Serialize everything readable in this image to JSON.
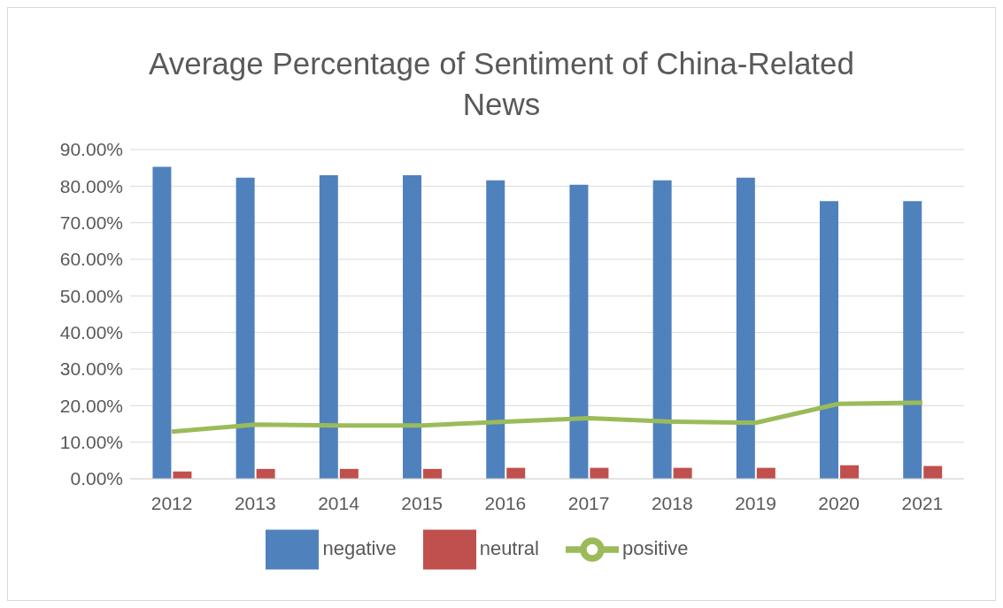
{
  "chart_data": {
    "type": "bar",
    "title": "Average Percentage of Sentiment of China-Related News",
    "categories": [
      "2012",
      "2013",
      "2014",
      "2015",
      "2016",
      "2017",
      "2018",
      "2019",
      "2020",
      "2021"
    ],
    "series": [
      {
        "name": "negative",
        "color": "#4f81bd",
        "values": [
          85.3,
          82.3,
          83.0,
          83.0,
          81.6,
          80.4,
          81.6,
          82.3,
          75.9,
          75.9
        ]
      },
      {
        "name": "neutral",
        "color": "#c0504d",
        "values": [
          2.0,
          2.7,
          2.7,
          2.7,
          3.0,
          3.0,
          3.0,
          3.0,
          3.7,
          3.5
        ]
      },
      {
        "name": "positive",
        "type": "line",
        "color": "#9bbb59",
        "values": [
          12.9,
          14.8,
          14.6,
          14.6,
          15.6,
          16.6,
          15.6,
          15.3,
          20.5,
          20.8
        ]
      }
    ],
    "ylim": [
      0,
      90
    ],
    "yticks": [
      {
        "value": 0,
        "label": "0.00%"
      },
      {
        "value": 10,
        "label": "10.00%"
      },
      {
        "value": 20,
        "label": "20.00%"
      },
      {
        "value": 30,
        "label": "30.00%"
      },
      {
        "value": 40,
        "label": "40.00%"
      },
      {
        "value": 50,
        "label": "50.00%"
      },
      {
        "value": 60,
        "label": "60.00%"
      },
      {
        "value": 70,
        "label": "70.00%"
      },
      {
        "value": 80,
        "label": "80.00%"
      },
      {
        "value": 90,
        "label": "90.00%"
      }
    ],
    "grid": "y",
    "legend": "bottom",
    "marker": "none",
    "line_style": "solid"
  }
}
